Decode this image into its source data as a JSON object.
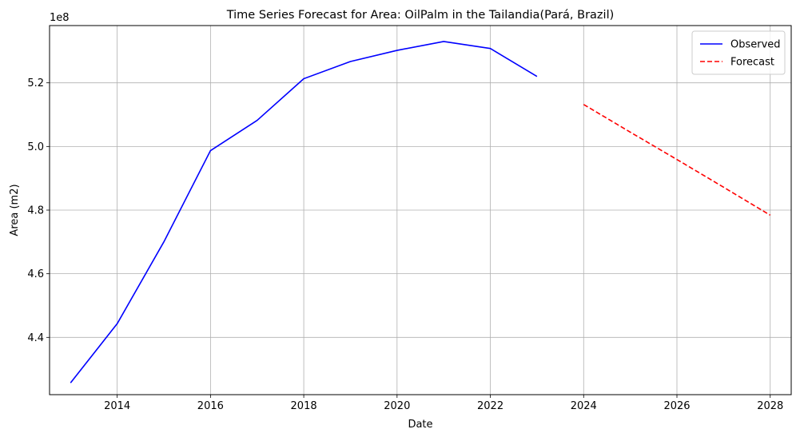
{
  "chart_data": {
    "type": "line",
    "title": "Time Series Forecast for Area: OilPalm in the Tailandia(Pará, Brazil)",
    "xlabel": "Date",
    "ylabel": "Area (m2)",
    "y_offset_label": "1e8",
    "xlim": [
      2012.55,
      2028.45
    ],
    "ylim": [
      422000000,
      538000000
    ],
    "x_ticks": [
      2014,
      2016,
      2018,
      2020,
      2022,
      2024,
      2026,
      2028
    ],
    "x_tick_labels": [
      "2014",
      "2016",
      "2018",
      "2020",
      "2022",
      "2024",
      "2026",
      "2028"
    ],
    "y_ticks": [
      440000000,
      460000000,
      480000000,
      500000000,
      520000000
    ],
    "y_tick_labels": [
      "4.4",
      "4.6",
      "4.8",
      "5.0",
      "5.2"
    ],
    "grid": true,
    "legend_position": "top-right",
    "series": [
      {
        "name": "Observed",
        "color": "#0000ff",
        "style": "solid",
        "x": [
          2013,
          2014,
          2015,
          2016,
          2017,
          2018,
          2019,
          2020,
          2021,
          2022,
          2023
        ],
        "y": [
          425700000,
          444300000,
          470000000,
          498700000,
          508200000,
          521300000,
          526700000,
          530200000,
          533000000,
          530800000,
          522000000
        ]
      },
      {
        "name": "Forecast",
        "color": "#ff0000",
        "style": "dashed",
        "x": [
          2024,
          2025,
          2026,
          2027,
          2028
        ],
        "y": [
          513200000,
          504500000,
          495900000,
          487200000,
          478400000
        ]
      }
    ]
  }
}
